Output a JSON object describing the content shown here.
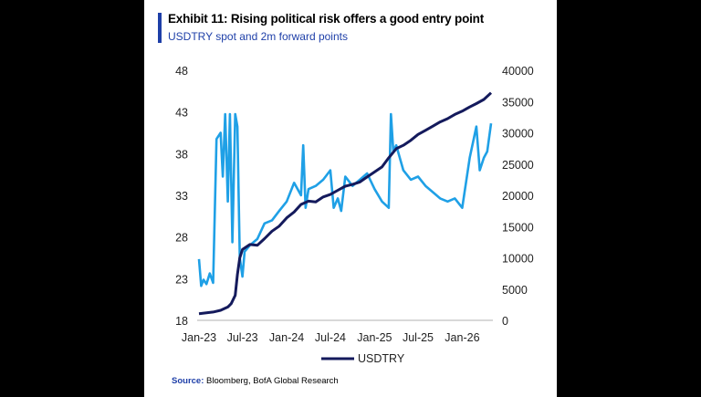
{
  "header": {
    "title": "Exhibit 11: Rising political risk offers a good entry point",
    "subtitle": "USDTRY spot and 2m forward points"
  },
  "footer": {
    "source_label": "Source:",
    "source_text": "Bloomberg, BofA Global Research"
  },
  "colors": {
    "usdtry": "#141a5c",
    "forward_points": "#1fa0e6",
    "accent": "#1e3fa8"
  },
  "chart_data": {
    "type": "line",
    "title": "Exhibit 11: Rising political risk offers a good entry point",
    "subtitle": "USDTRY spot and 2m forward points",
    "x_ticks": [
      "Jan-23",
      "Jul-23",
      "Jan-24",
      "Jul-24",
      "Jan-25",
      "Jul-25",
      "Jan-26"
    ],
    "x_range": [
      "2023-01",
      "2026-05"
    ],
    "y_left": {
      "ticks": [
        "48",
        "43",
        "38",
        "33",
        "28",
        "23",
        "18"
      ],
      "range": [
        18,
        48
      ]
    },
    "y_right": {
      "ticks": [
        "40000",
        "35000",
        "30000",
        "25000",
        "20000",
        "15000",
        "10000",
        "5000",
        "0"
      ],
      "range": [
        0,
        40000
      ]
    },
    "legend": {
      "position": "bottom-center",
      "entries": [
        "USDTRY"
      ]
    },
    "grid": false,
    "series": [
      {
        "name": "USDTRY",
        "axis": "left",
        "x": [
          "2023-01",
          "2023-02",
          "2023-03",
          "2023-04",
          "2023-05",
          "2023-05-15",
          "2023-06-01",
          "2023-06-10",
          "2023-06-20",
          "2023-07",
          "2023-08",
          "2023-09",
          "2023-10",
          "2023-11",
          "2023-12",
          "2024-01",
          "2024-02",
          "2024-03",
          "2024-04",
          "2024-05",
          "2024-06",
          "2024-07",
          "2024-08",
          "2024-09",
          "2024-10",
          "2024-11",
          "2024-12",
          "2025-01",
          "2025-02",
          "2025-03",
          "2025-04",
          "2025-05",
          "2025-06",
          "2025-07",
          "2025-08",
          "2025-09",
          "2025-10",
          "2025-11",
          "2025-12",
          "2026-01",
          "2026-02",
          "2026-03",
          "2026-04",
          "2026-05"
        ],
        "values": [
          18.8,
          18.9,
          19.0,
          19.2,
          19.6,
          20.0,
          21.0,
          23.5,
          25.5,
          26.5,
          27.1,
          27.0,
          27.8,
          28.7,
          29.3,
          30.3,
          31.0,
          31.9,
          32.3,
          32.2,
          32.8,
          33.1,
          33.6,
          34.1,
          34.3,
          34.6,
          35.2,
          35.8,
          36.4,
          37.5,
          38.6,
          39.0,
          39.6,
          40.3,
          40.8,
          41.3,
          41.8,
          42.2,
          42.7,
          43.1,
          43.6,
          44.0,
          44.5,
          45.3
        ]
      },
      {
        "name": "",
        "axis": "right",
        "x": [
          "2023-01",
          "2023-01-10",
          "2023-01-20",
          "2023-02",
          "2023-02-15",
          "2023-03",
          "2023-03-15",
          "2023-04",
          "2023-04-10",
          "2023-04-20",
          "2023-05",
          "2023-05-10",
          "2023-05-20",
          "2023-06",
          "2023-06-10",
          "2023-06-20",
          "2023-07",
          "2023-07-10",
          "2023-08",
          "2023-09",
          "2023-10",
          "2023-11",
          "2023-12",
          "2024-01",
          "2024-02",
          "2024-03",
          "2024-03-10",
          "2024-03-20",
          "2024-04",
          "2024-05",
          "2024-06",
          "2024-07",
          "2024-07-15",
          "2024-08",
          "2024-08-15",
          "2024-09",
          "2024-10",
          "2024-11",
          "2024-12",
          "2025-01",
          "2025-02",
          "2025-03",
          "2025-03-10",
          "2025-03-20",
          "2025-04",
          "2025-05",
          "2025-06",
          "2025-07",
          "2025-08",
          "2025-09",
          "2025-10",
          "2025-11",
          "2025-12",
          "2026-01",
          "2026-02",
          "2026-03",
          "2026-03-15",
          "2026-04",
          "2026-04-15",
          "2026-05"
        ],
        "values": [
          9800,
          5500,
          6500,
          5800,
          7500,
          6000,
          29000,
          30000,
          23000,
          33000,
          19000,
          33000,
          12500,
          33000,
          31000,
          10000,
          7000,
          11000,
          12000,
          13000,
          15500,
          16000,
          17500,
          19000,
          22000,
          20000,
          28000,
          18000,
          21000,
          21500,
          22500,
          24000,
          18000,
          19500,
          17500,
          23000,
          21500,
          22500,
          23500,
          21000,
          19000,
          18000,
          33000,
          27000,
          28000,
          24000,
          22500,
          23000,
          21500,
          20500,
          19500,
          19000,
          19500,
          18000,
          26000,
          31000,
          24000,
          26000,
          27000,
          31500
        ]
      }
    ]
  }
}
